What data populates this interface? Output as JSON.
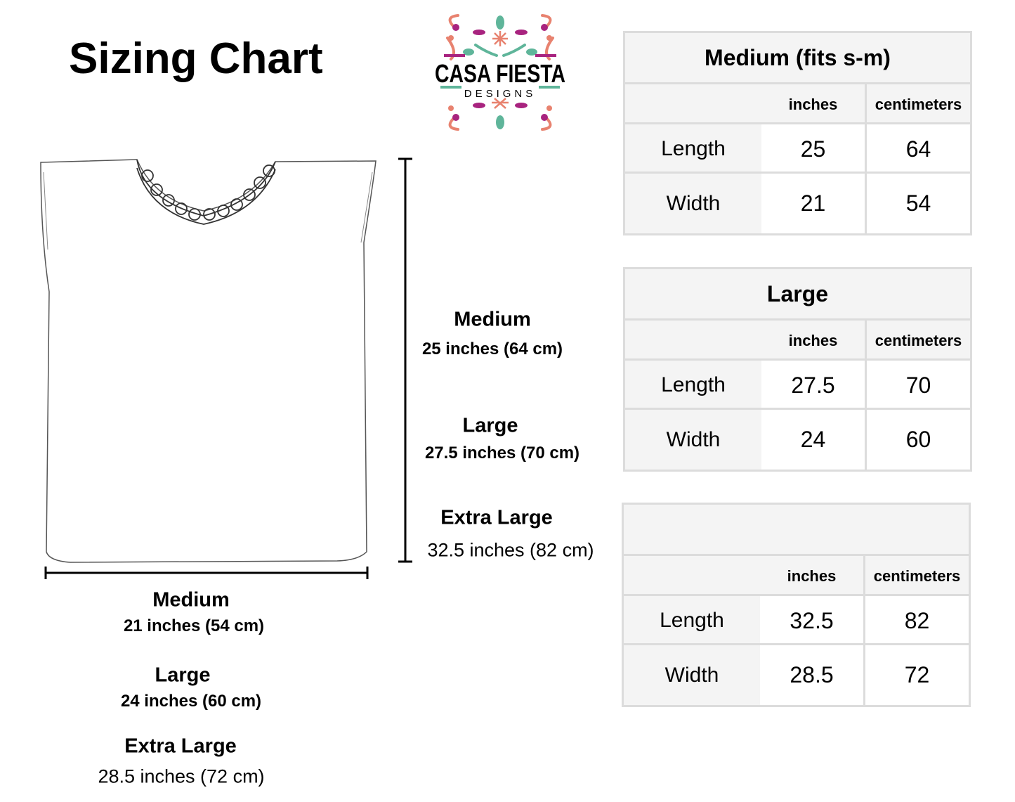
{
  "title": "Sizing Chart",
  "brand": {
    "name": "CASA FIESTA",
    "tagline": "DESIGNS",
    "colors": [
      "#5fb59a",
      "#e8826f",
      "#a8237f"
    ]
  },
  "length_labels": [
    {
      "size": "Medium",
      "measure": "25 inches (64 cm)"
    },
    {
      "size": "Large",
      "measure": "27.5 inches (70 cm)"
    },
    {
      "size": "Extra Large",
      "measure": "32.5 inches (82 cm)"
    }
  ],
  "width_labels": [
    {
      "size": "Medium",
      "measure": "21 inches (54 cm)"
    },
    {
      "size": "Large",
      "measure": "24 inches (60 cm)"
    },
    {
      "size": "Extra Large",
      "measure": "28.5 inches (72 cm)"
    }
  ],
  "tables": [
    {
      "title": "Medium (fits s-m)",
      "col_inches": "inches",
      "col_cm": "centimeters",
      "rows": [
        {
          "label": "Length",
          "inches": "25",
          "cm": "64"
        },
        {
          "label": "Width",
          "inches": "21",
          "cm": "54"
        }
      ]
    },
    {
      "title": "Large",
      "col_inches": "inches",
      "col_cm": "centimeters",
      "rows": [
        {
          "label": "Length",
          "inches": "27.5",
          "cm": "70"
        },
        {
          "label": "Width",
          "inches": "24",
          "cm": "60"
        }
      ]
    },
    {
      "title": "",
      "col_inches": "inches",
      "col_cm": "centimeters",
      "rows": [
        {
          "label": "Length",
          "inches": "32.5",
          "cm": "82"
        },
        {
          "label": "Width",
          "inches": "28.5",
          "cm": "72"
        }
      ]
    }
  ]
}
